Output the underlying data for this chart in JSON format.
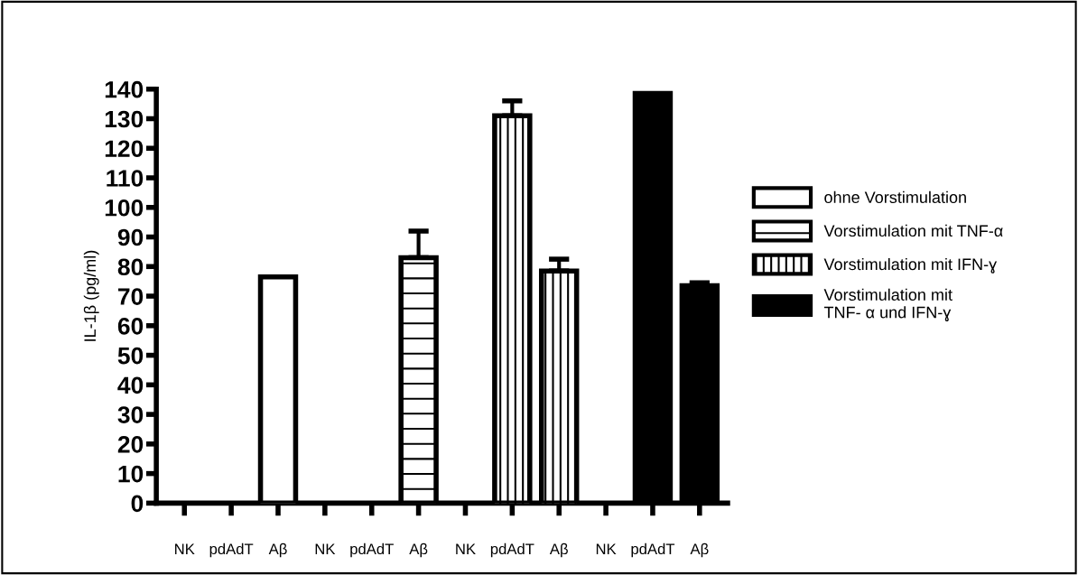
{
  "chart_data": {
    "type": "bar",
    "ylabel": "IL-1β (pg/ml)",
    "categories": [
      "NK",
      "pdAdT",
      "Aβ",
      "NK",
      "pdAdT",
      "Aβ",
      "NK",
      "pdAdT",
      "Aβ",
      "NK",
      "pdAdT",
      "Aβ"
    ],
    "series": [
      {
        "name": "ohne Vorstimulation",
        "color": "#ffffff",
        "values": [
          null,
          null,
          76.5,
          null,
          null,
          null,
          null,
          null,
          null,
          null,
          null,
          null
        ],
        "errors": [
          null,
          null,
          null,
          null,
          null,
          null,
          null,
          null,
          null,
          null,
          null,
          null
        ]
      },
      {
        "name": "Vorstimulation mit TNF-α",
        "color": "#000000",
        "values": [
          null,
          null,
          null,
          null,
          null,
          83,
          null,
          null,
          null,
          null,
          null,
          null
        ],
        "errors": [
          null,
          null,
          null,
          null,
          null,
          9,
          null,
          null,
          null,
          null,
          null,
          null
        ]
      },
      {
        "name": "Vorstimulation mit IFN-ɣ",
        "color": "#000000",
        "values": [
          null,
          null,
          null,
          null,
          null,
          null,
          null,
          131,
          78.5,
          null,
          null,
          null
        ],
        "errors": [
          null,
          null,
          null,
          null,
          null,
          null,
          null,
          5,
          4,
          null,
          null,
          null
        ]
      },
      {
        "name": "Vorstimulation mit\nTNF- α und IFN-ɣ",
        "color": "#000000",
        "values": [
          null,
          null,
          null,
          null,
          null,
          null,
          null,
          null,
          null,
          null,
          138.5,
          73.5
        ],
        "errors": [
          null,
          null,
          null,
          null,
          null,
          null,
          null,
          null,
          null,
          null,
          null,
          1
        ]
      }
    ],
    "ylim": [
      0,
      140
    ],
    "yticks": [
      0,
      10,
      20,
      30,
      40,
      50,
      60,
      70,
      80,
      90,
      100,
      110,
      120,
      130,
      140
    ],
    "grid": false,
    "legend": "right"
  }
}
